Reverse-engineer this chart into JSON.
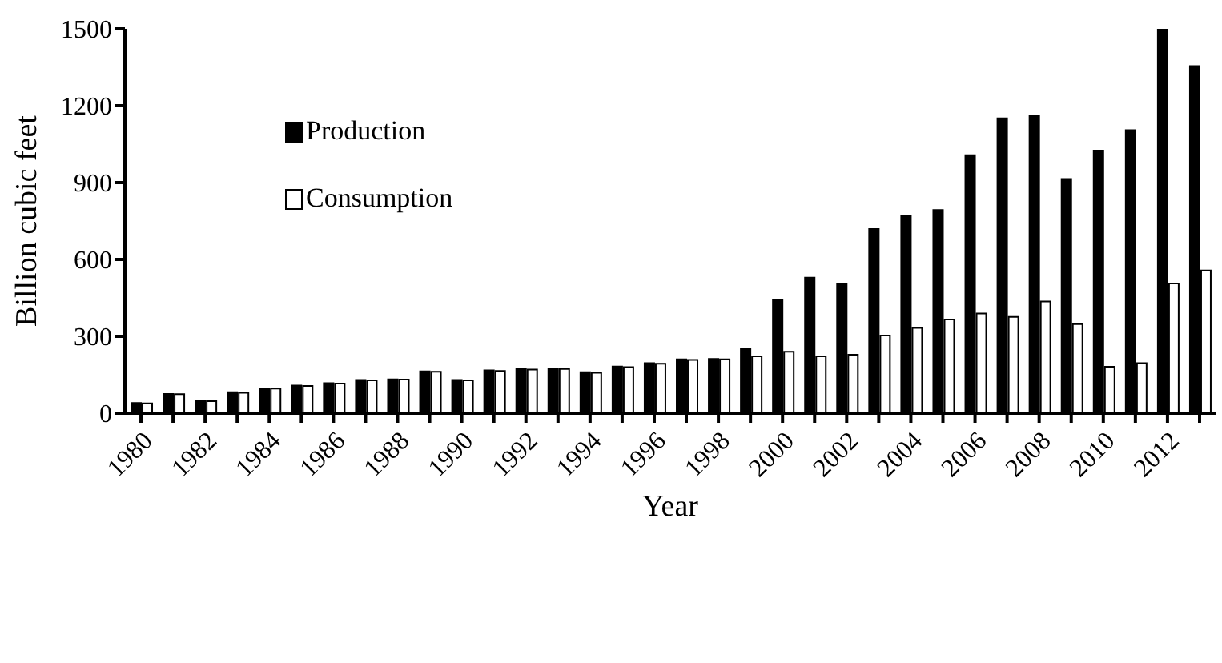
{
  "chart_data": {
    "type": "bar",
    "xlabel": "Year",
    "ylabel": "Billion cubic feet",
    "categories": [
      "1980",
      null,
      "1982",
      null,
      "1984",
      null,
      "1986",
      null,
      "1988",
      null,
      "1990",
      null,
      "1992",
      null,
      "1994",
      null,
      "1996",
      null,
      "1998",
      null,
      "2000",
      null,
      "2002",
      null,
      "2004",
      null,
      "2006",
      null,
      "2008",
      null,
      "2010",
      null,
      "2012",
      null
    ],
    "series": [
      {
        "name": "Production",
        "color": "#000000",
        "values": [
          40,
          75,
          48,
          82,
          97,
          108,
          117,
          130,
          132,
          163,
          130,
          167,
          172,
          175,
          160,
          182,
          195,
          210,
          212,
          250,
          441,
          529,
          505,
          719,
          770,
          793,
          1007,
          1151,
          1160,
          914,
          1025,
          1105,
          1500,
          1355
        ]
      },
      {
        "name": "Consumption",
        "color": "#ffffff",
        "values": [
          38,
          74,
          47,
          80,
          96,
          106,
          116,
          128,
          131,
          162,
          128,
          165,
          170,
          173,
          158,
          180,
          193,
          208,
          210,
          222,
          240,
          222,
          228,
          303,
          333,
          366,
          389,
          376,
          436,
          348,
          181,
          195,
          506,
          557
        ]
      }
    ],
    "ylim": [
      0,
      1500
    ],
    "yticks": [
      0,
      300,
      600,
      900,
      1200,
      1500
    ],
    "grid": false,
    "legend": "top left"
  }
}
